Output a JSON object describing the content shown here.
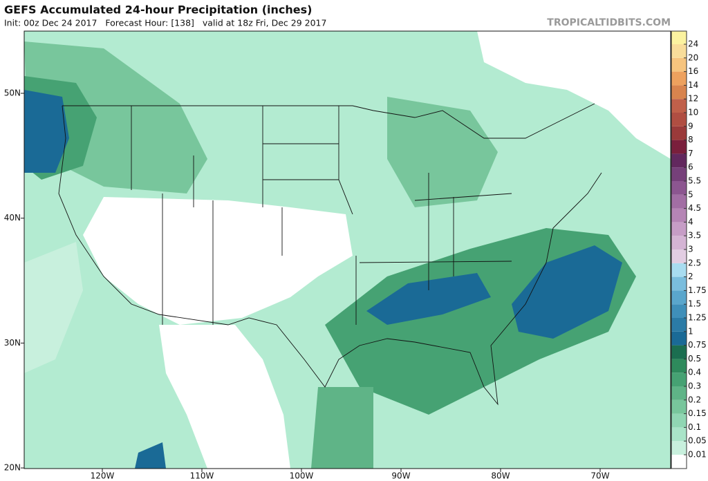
{
  "header": {
    "title": "GEFS Accumulated 24-hour Precipitation (inches)",
    "subtitle": "Init: 00z Dec 24 2017   Forecast Hour: [138]   valid at 18z Fri, Dec 29 2017",
    "watermark": "TROPICALTIDBITS.COM"
  },
  "map": {
    "lat_labels": [
      "50N",
      "40N",
      "30N",
      "20N"
    ],
    "lon_labels": [
      "120W",
      "110W",
      "100W",
      "90W",
      "80W",
      "70W"
    ]
  },
  "colorbar": {
    "levels": [
      0.01,
      0.05,
      0.1,
      0.15,
      0.2,
      0.3,
      0.4,
      0.5,
      0.75,
      1,
      1.25,
      1.5,
      1.75,
      2,
      2.5,
      3,
      3.5,
      4,
      4.5,
      5,
      5.5,
      6,
      7,
      8,
      9,
      10,
      12,
      14,
      16,
      20,
      24
    ],
    "colors": [
      "#ffffff",
      "#c8f0dd",
      "#a9e4c8",
      "#90d6b3",
      "#78c69c",
      "#5fb487",
      "#46a273",
      "#2e8a5c",
      "#1b6e50",
      "#1a6a96",
      "#2b7ba6",
      "#3f8fb9",
      "#5aa6cc",
      "#7abddd",
      "#a8dcf0",
      "#e2cde2",
      "#d4b4d4",
      "#c69dc6",
      "#b585b5",
      "#a26ea4",
      "#8c5690",
      "#76407a",
      "#62285e",
      "#7a1f3c",
      "#9a3a3a",
      "#b04e42",
      "#c0604a",
      "#d8844e",
      "#eda15e",
      "#f6c47e",
      "#f8dd9a",
      "#fbf3a0"
    ]
  }
}
